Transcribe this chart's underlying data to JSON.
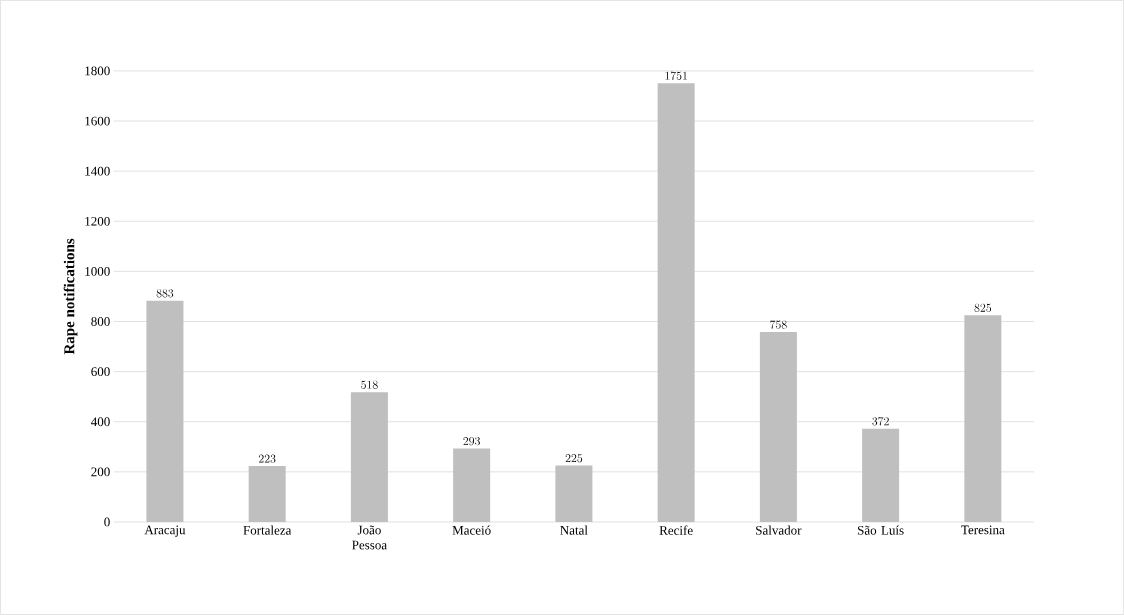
{
  "chart_data": {
    "type": "bar",
    "ylabel": "Rape notifications",
    "categories": [
      "Aracaju",
      "Fortaleza",
      "João Pessoa",
      "Maceió",
      "Natal",
      "Recife",
      "Salvador",
      "São Luís",
      "Teresina"
    ],
    "values": [
      883,
      223,
      518,
      293,
      225,
      1751,
      758,
      372,
      825
    ],
    "color": "#bfbfbf",
    "ylim": [
      0,
      1800
    ],
    "yticks": [
      0,
      200,
      400,
      600,
      800,
      1000,
      1200,
      1400,
      1600,
      1800
    ],
    "grid": "y",
    "data_labels": true
  }
}
